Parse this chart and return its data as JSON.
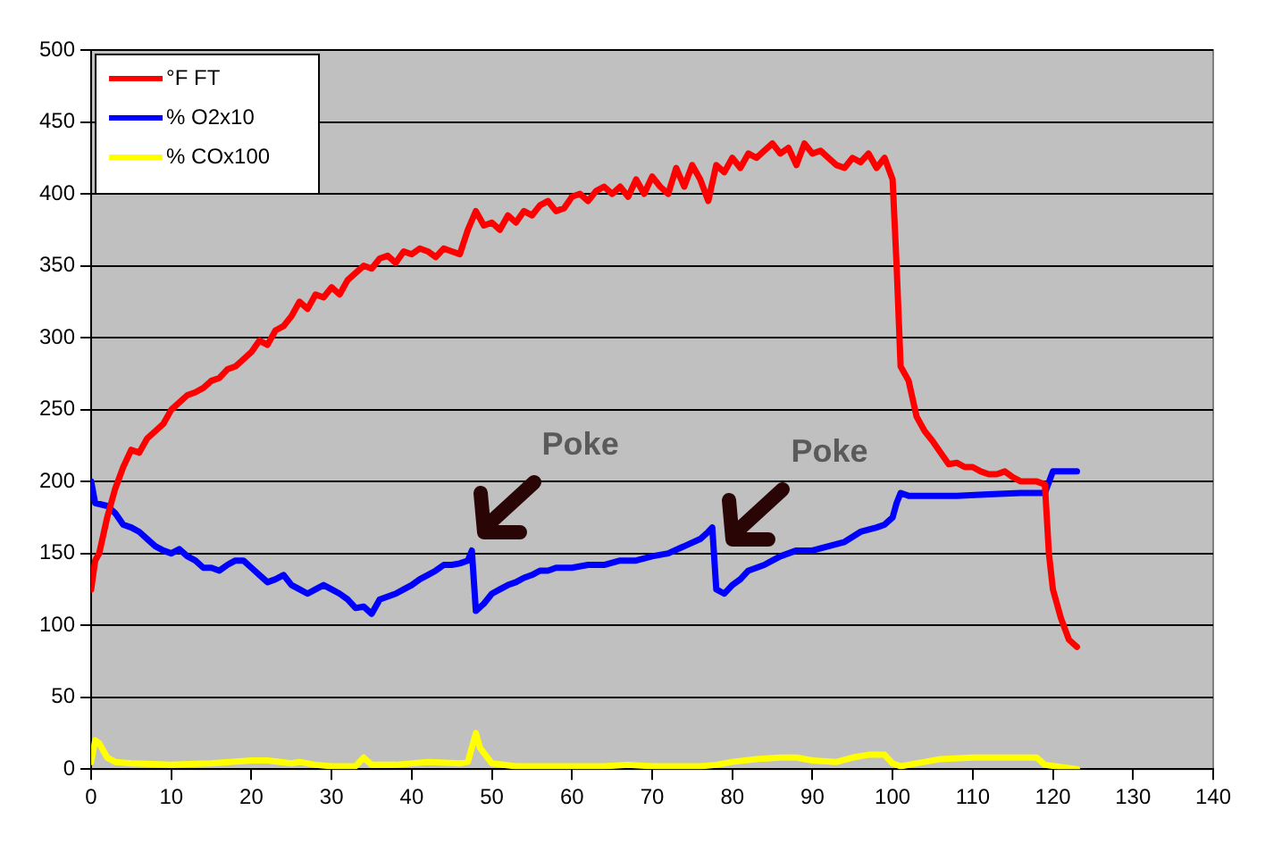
{
  "chart_data": {
    "type": "line",
    "xlim": [
      0,
      140
    ],
    "xticks": [
      0,
      10,
      20,
      30,
      40,
      50,
      60,
      70,
      80,
      90,
      100,
      110,
      120,
      130,
      140
    ],
    "ylim": [
      0,
      500
    ],
    "yticks": [
      0,
      50,
      100,
      150,
      200,
      250,
      300,
      350,
      400,
      450,
      500
    ],
    "grid": "y",
    "legend": "top left",
    "marker": "none",
    "line_style": "solid",
    "annotations": [
      "Poke",
      "Poke"
    ],
    "series": [
      {
        "name": "°F FT",
        "color": "#ff0000",
        "x": [
          0,
          0.5,
          1,
          2,
          3,
          4,
          5,
          6,
          7,
          8,
          9,
          10,
          11,
          12,
          13,
          14,
          15,
          16,
          17,
          18,
          19,
          20,
          21,
          22,
          23,
          24,
          25,
          26,
          27,
          28,
          29,
          30,
          31,
          32,
          33,
          34,
          35,
          36,
          37,
          38,
          39,
          40,
          41,
          42,
          43,
          44,
          45,
          46,
          47,
          48,
          49,
          50,
          51,
          52,
          53,
          54,
          55,
          56,
          57,
          58,
          59,
          60,
          61,
          62,
          63,
          64,
          65,
          66,
          67,
          68,
          69,
          70,
          71,
          72,
          73,
          74,
          75,
          76,
          77,
          78,
          79,
          80,
          81,
          82,
          83,
          84,
          85,
          86,
          87,
          88,
          89,
          90,
          91,
          92,
          93,
          94,
          95,
          96,
          97,
          98,
          99,
          100,
          100.5,
          101,
          102,
          103,
          104,
          105,
          106,
          107,
          108,
          109,
          110,
          111,
          112,
          113,
          114,
          115,
          116,
          117,
          118,
          119,
          119.5,
          120,
          121,
          122,
          123
        ],
        "values": [
          125,
          145,
          150,
          175,
          195,
          210,
          222,
          220,
          230,
          235,
          240,
          250,
          255,
          260,
          262,
          265,
          270,
          272,
          278,
          280,
          285,
          290,
          298,
          295,
          305,
          308,
          315,
          325,
          320,
          330,
          328,
          335,
          330,
          340,
          345,
          350,
          348,
          355,
          357,
          352,
          360,
          358,
          362,
          360,
          356,
          362,
          360,
          358,
          375,
          388,
          378,
          380,
          375,
          385,
          380,
          388,
          385,
          392,
          395,
          388,
          390,
          398,
          400,
          395,
          402,
          405,
          400,
          405,
          398,
          410,
          400,
          412,
          405,
          400,
          418,
          405,
          420,
          410,
          395,
          420,
          415,
          425,
          418,
          428,
          425,
          430,
          435,
          428,
          432,
          420,
          435,
          428,
          430,
          425,
          420,
          418,
          425,
          422,
          428,
          418,
          425,
          410,
          350,
          280,
          270,
          245,
          235,
          228,
          220,
          212,
          213,
          210,
          210,
          207,
          205,
          205,
          207,
          203,
          200,
          200,
          200,
          198,
          150,
          125,
          105,
          90,
          85
        ]
      },
      {
        "name": "% O2x10",
        "color": "#0000ff",
        "x": [
          0,
          0.5,
          2,
          3,
          4,
          5,
          6,
          7,
          8,
          9,
          10,
          11,
          12,
          13,
          14,
          15,
          16,
          17,
          18,
          19,
          20,
          21,
          22,
          23,
          24,
          25,
          26,
          27,
          28,
          29,
          30,
          31,
          32,
          33,
          34,
          35,
          36,
          37,
          38,
          39,
          40,
          41,
          42,
          43,
          44,
          45,
          46,
          47,
          47.5,
          48,
          49,
          50,
          51,
          52,
          53,
          54,
          55,
          56,
          57,
          58,
          60,
          62,
          64,
          66,
          68,
          70,
          72,
          74,
          76,
          77,
          77.5,
          78,
          79,
          80,
          81,
          82,
          83,
          84,
          85,
          86,
          88,
          90,
          92,
          94,
          96,
          98,
          99,
          100,
          100.5,
          101,
          102,
          104,
          106,
          108,
          112,
          116,
          118,
          119,
          120,
          123
        ],
        "values": [
          200,
          185,
          183,
          178,
          170,
          168,
          165,
          160,
          155,
          152,
          150,
          153,
          148,
          145,
          140,
          140,
          138,
          142,
          145,
          145,
          140,
          135,
          130,
          132,
          135,
          128,
          125,
          122,
          125,
          128,
          125,
          122,
          118,
          112,
          113,
          108,
          118,
          120,
          122,
          125,
          128,
          132,
          135,
          138,
          142,
          142,
          143,
          145,
          152,
          110,
          115,
          122,
          125,
          128,
          130,
          133,
          135,
          138,
          138,
          140,
          140,
          142,
          142,
          145,
          145,
          148,
          150,
          155,
          160,
          165,
          168,
          125,
          122,
          128,
          132,
          138,
          140,
          142,
          145,
          148,
          152,
          152,
          155,
          158,
          165,
          168,
          170,
          175,
          185,
          192,
          190,
          190,
          190,
          190,
          191,
          192,
          192,
          192,
          207,
          207
        ]
      },
      {
        "name": "% COx100",
        "color": "#ffff00",
        "x": [
          0,
          0.5,
          1,
          2,
          3,
          5,
          10,
          15,
          20,
          22,
          25,
          26,
          28,
          30,
          33,
          34,
          35,
          38,
          42,
          46,
          47,
          48,
          48.5,
          50,
          53,
          57,
          60,
          62,
          64,
          67,
          70,
          72,
          76,
          78,
          80,
          83,
          86,
          88,
          90,
          93,
          95,
          97,
          99,
          100,
          101,
          104,
          106,
          110,
          114,
          118,
          119,
          123
        ],
        "values": [
          5,
          20,
          18,
          8,
          5,
          4,
          3,
          4,
          6,
          6,
          4,
          5,
          3,
          2,
          2,
          8,
          3,
          3,
          5,
          4,
          5,
          25,
          15,
          4,
          2,
          2,
          2,
          2,
          2,
          3,
          2,
          2,
          2,
          3,
          5,
          7,
          8,
          8,
          6,
          5,
          8,
          10,
          10,
          4,
          2,
          5,
          7,
          8,
          8,
          8,
          3,
          0
        ]
      }
    ]
  }
}
